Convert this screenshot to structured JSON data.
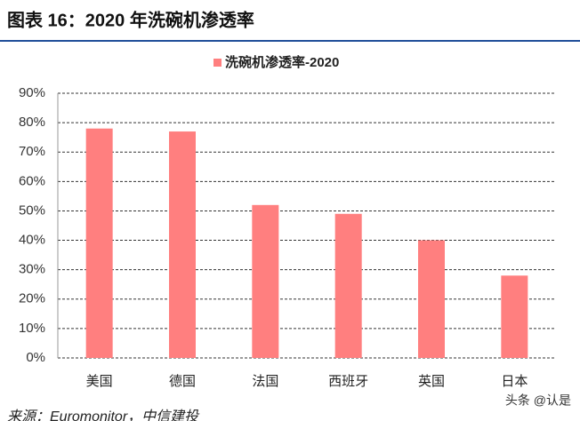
{
  "header": {
    "title": "图表 16：2020 年洗碗机渗透率"
  },
  "chart_data": {
    "type": "bar",
    "categories": [
      "美国",
      "德国",
      "法国",
      "西班牙",
      "英国",
      "日本"
    ],
    "series": [
      {
        "name": "洗碗机渗透率-2020",
        "color": "#ff7f7f",
        "values": [
          78,
          77,
          52,
          49,
          40,
          28
        ]
      }
    ],
    "ylim": [
      0,
      90
    ],
    "yticks": [
      {
        "value": 0,
        "label": "0%"
      },
      {
        "value": 10,
        "label": "10%"
      },
      {
        "value": 20,
        "label": "20%"
      },
      {
        "value": 30,
        "label": "30%"
      },
      {
        "value": 40,
        "label": "40%"
      },
      {
        "value": 50,
        "label": "50%"
      },
      {
        "value": 60,
        "label": "60%"
      },
      {
        "value": 70,
        "label": "70%"
      },
      {
        "value": 80,
        "label": "80%"
      },
      {
        "value": 90,
        "label": "90%"
      }
    ],
    "grid": true
  },
  "footer": {
    "source": "来源：Euromonitor，中信建投",
    "watermark": "头条 @认是"
  }
}
